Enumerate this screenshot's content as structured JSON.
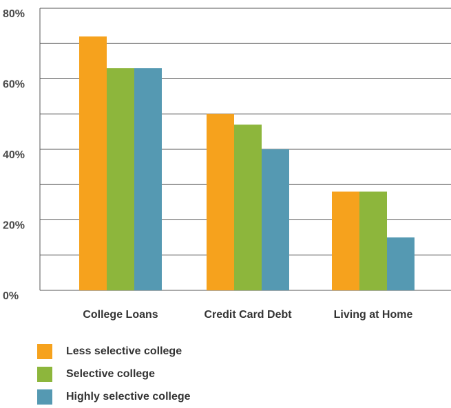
{
  "chart_data": {
    "type": "bar",
    "title": "",
    "xlabel": "",
    "ylabel": "",
    "categories": [
      "College Loans",
      "Credit Card Debt",
      "Living at Home"
    ],
    "ylim": [
      0,
      80
    ],
    "yticks": [
      "0%",
      "20%",
      "40%",
      "60%",
      "80%"
    ],
    "grid": true,
    "legend_position": "bottom-left",
    "series": [
      {
        "name": "Less selective college",
        "color": "#f6a21d",
        "values": [
          72,
          50,
          28
        ]
      },
      {
        "name": "Selective college",
        "color": "#8db63c",
        "values": [
          63,
          47,
          28
        ]
      },
      {
        "name": "Highly selective college",
        "color": "#5599b2",
        "values": [
          63,
          40,
          15
        ]
      }
    ]
  },
  "legend": {
    "items": [
      {
        "label": "Less selective college",
        "color": "#f6a21d"
      },
      {
        "label": "Selective college",
        "color": "#8db63c"
      },
      {
        "label": "Highly selective college",
        "color": "#5599b2"
      }
    ]
  }
}
